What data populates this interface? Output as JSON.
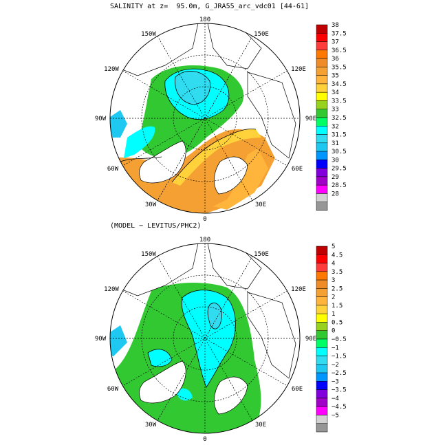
{
  "panels": [
    {
      "title": "SALINITY at z=  95.0m, G_JRA55_arc_vdc01 [44-61]",
      "lon_labels": [
        "180",
        "150E",
        "120E",
        "90E",
        "60E",
        "30E",
        "0",
        "30W",
        "60W",
        "90W",
        "120W",
        "150W"
      ],
      "colorbar_labels": [
        "38",
        "37.5",
        "37",
        "36.5",
        "36",
        "35.5",
        "35",
        "34.5",
        "34",
        "33.5",
        "33",
        "32.5",
        "32",
        "31.5",
        "31",
        "30.5",
        "30",
        "29.5",
        "29",
        "28.5",
        "28"
      ],
      "colorbar_colors": [
        "#be0000",
        "#ff0000",
        "#ff3c3c",
        "#ff7800",
        "#f08c28",
        "#f5a032",
        "#ffb43c",
        "#ffd23c",
        "#ffff00",
        "#96d21e",
        "#32c832",
        "#00ff64",
        "#00ffff",
        "#32dcf0",
        "#1ec8f0",
        "#0096ff",
        "#0000ff",
        "#8200dc",
        "#a000c8",
        "#ff00ff",
        "#d2d2d2",
        "#969696"
      ]
    },
    {
      "title": "(MODEL − LEVITUS/PHC2)",
      "lon_labels": [
        "180",
        "150E",
        "120E",
        "90E",
        "60E",
        "30E",
        "0",
        "30W",
        "60W",
        "90W",
        "120W",
        "150W"
      ],
      "colorbar_labels": [
        "5",
        "4.5",
        "4",
        "3.5",
        "3",
        "2.5",
        "2",
        "1.5",
        "1",
        "0.5",
        "0",
        "−0.5",
        "−1",
        "−1.5",
        "−2",
        "−2.5",
        "−3",
        "−3.5",
        "−4",
        "−4.5",
        "−5"
      ],
      "colorbar_colors": [
        "#be0000",
        "#ff0000",
        "#ff3c3c",
        "#ff7800",
        "#f08c28",
        "#f5a032",
        "#ffb43c",
        "#ffd23c",
        "#ffff00",
        "#96d21e",
        "#32c832",
        "#00ff64",
        "#00ffff",
        "#32dcf0",
        "#1ec8f0",
        "#0096ff",
        "#0000ff",
        "#8200dc",
        "#a000c8",
        "#ff00ff",
        "#d2d2d2",
        "#969696"
      ]
    }
  ]
}
